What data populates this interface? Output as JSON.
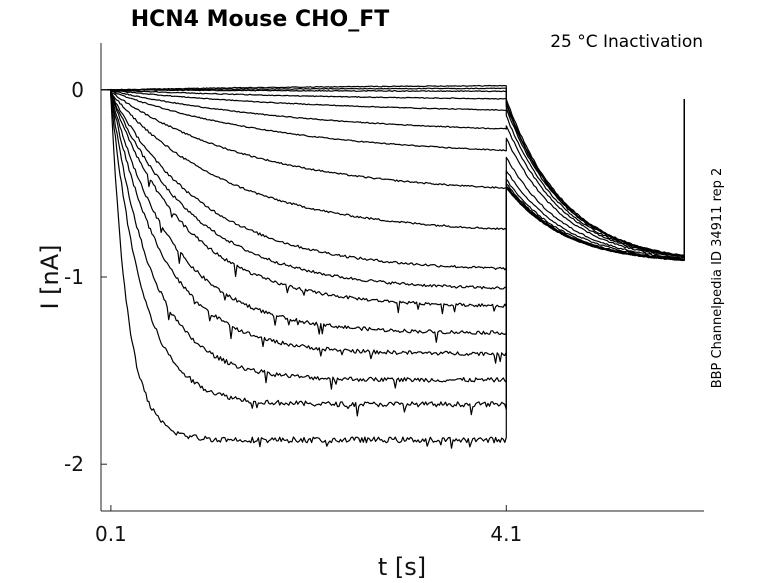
{
  "chart_data": {
    "type": "line",
    "title": "HCN4  Mouse  CHO_FT",
    "annotation": "25 °C  Inactivation",
    "side_label": "BBP Channelpedia ID 34911 rep 2",
    "xlabel": "t [s]",
    "ylabel": "I [nA]",
    "xlim": [
      0.0,
      6.1
    ],
    "ylim": [
      -2.25,
      0.25
    ],
    "x_ticks": [
      0.1,
      4.1
    ],
    "x_tick_labels": [
      "0.1",
      "4.1"
    ],
    "y_ticks": [
      0,
      -1,
      -2
    ],
    "y_tick_labels": [
      "0",
      "-1",
      "-2"
    ],
    "grid": false,
    "legend": "none",
    "step_start_s": 0.1,
    "step_end_s": 4.1,
    "sweep_end_s": 5.9,
    "tail_current_nA": -0.93,
    "series_steady_state_nA": [
      0.03,
      0.01,
      -0.01,
      -0.06,
      -0.13,
      -0.24,
      -0.36,
      -0.56,
      -0.77,
      -0.97,
      -1.07,
      -1.16,
      -1.3,
      -1.41,
      -1.55,
      -1.68,
      -1.87
    ],
    "series_tail_start_nA": [
      -0.05,
      -0.07,
      -0.08,
      -0.1,
      -0.14,
      -0.19,
      -0.26,
      -0.36,
      -0.43,
      -0.48,
      -0.5,
      -0.51,
      -0.52,
      -0.52,
      -0.52,
      -0.52,
      -0.52
    ],
    "line_color": "#000000"
  }
}
